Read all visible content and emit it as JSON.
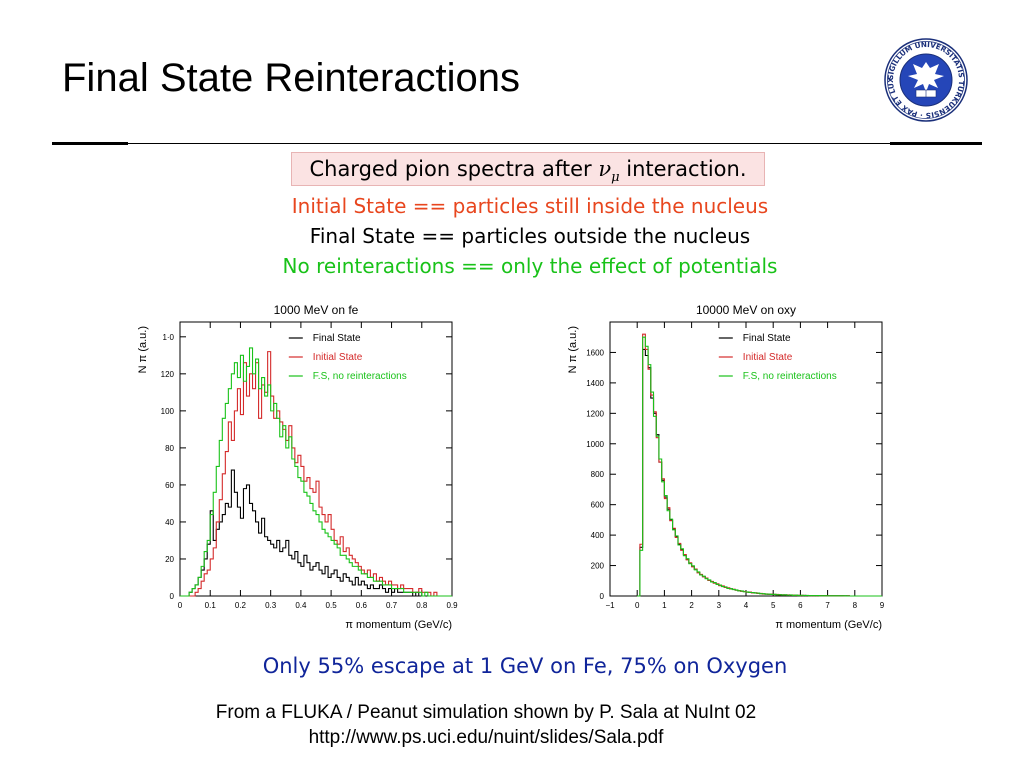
{
  "slide": {
    "title": "Final State Reinteractions",
    "logo_text": "SIGILLUM UNIVERSITATIS TURKUENSIS · PAX ET LUX"
  },
  "figure": {
    "title_prefix": "Charged pion spectra after ",
    "title_symbol": "ν",
    "title_subscript": "μ",
    "title_suffix": " interaction.",
    "definitions": [
      {
        "text": "Initial State == particles still inside the nucleus",
        "color": "#e8461e"
      },
      {
        "text": "Final State == particles outside the nucleus",
        "color": "#000000"
      },
      {
        "text": "No reinteractions == only the effect of potentials",
        "color": "#19c219"
      }
    ],
    "summary": "Only 55% escape at 1 GeV on Fe, 75% on Oxygen"
  },
  "credits": [
    "From a FLUKA / Peanut simulation shown by P. Sala at NuInt 02",
    "http://www.ps.uci.edu/nuint/slides/Sala.pdf"
  ],
  "chart_data": [
    {
      "type": "line",
      "title": "1000 MeV  on fe",
      "xlabel": "π momentum (GeV/c)",
      "ylabel": "N π (a.u.)",
      "xlim": [
        0,
        0.9
      ],
      "ylim": [
        0,
        148
      ],
      "xticks": [
        0,
        0.1,
        0.2,
        0.3,
        0.4,
        0.5,
        0.6,
        0.7,
        0.8,
        0.9
      ],
      "xtick_labels": [
        "0",
        "0.1",
        "0.2",
        "0.3",
        "0.4",
        "0.5",
        "0.6",
        "0.7",
        "0.8",
        "0.9"
      ],
      "yticks": [
        0,
        20,
        40,
        60,
        80,
        100,
        120,
        140
      ],
      "ytick_labels": [
        "0",
        "20",
        "40",
        "60",
        "80",
        "100",
        "120",
        "1·0"
      ],
      "legend_position": "top-right",
      "step": 0.01,
      "series": [
        {
          "name": "Final State",
          "color": "#000000",
          "values": [
            0,
            0,
            0,
            2,
            4,
            6,
            10,
            14,
            20,
            28,
            46,
            30,
            36,
            40,
            44,
            50,
            48,
            68,
            56,
            48,
            42,
            58,
            60,
            50,
            46,
            40,
            34,
            42,
            32,
            30,
            28,
            26,
            30,
            24,
            26,
            30,
            22,
            20,
            24,
            18,
            16,
            22,
            18,
            14,
            16,
            18,
            14,
            12,
            16,
            10,
            12,
            14,
            10,
            8,
            12,
            10,
            8,
            6,
            10,
            6,
            8,
            6,
            4,
            6,
            4,
            4,
            6,
            4,
            2,
            4,
            2,
            4,
            2,
            2,
            2,
            2,
            2,
            0,
            2,
            0,
            0,
            0,
            0,
            0,
            0,
            0,
            0,
            0,
            0,
            0
          ]
        },
        {
          "name": "Initial State",
          "color": "#d42a2a",
          "values": [
            0,
            0,
            0,
            0,
            0,
            2,
            4,
            8,
            12,
            14,
            20,
            26,
            40,
            52,
            66,
            78,
            94,
            84,
            100,
            112,
            98,
            126,
            108,
            120,
            112,
            126,
            96,
            114,
            110,
            132,
            108,
            96,
            100,
            94,
            90,
            84,
            92,
            80,
            72,
            76,
            70,
            62,
            64,
            58,
            56,
            62,
            48,
            44,
            40,
            44,
            36,
            30,
            28,
            32,
            24,
            26,
            22,
            20,
            18,
            16,
            14,
            12,
            14,
            10,
            12,
            8,
            10,
            8,
            6,
            8,
            6,
            6,
            4,
            6,
            4,
            4,
            4,
            2,
            2,
            4,
            2,
            2,
            2,
            0,
            2,
            0,
            0,
            0,
            0,
            0
          ]
        },
        {
          "name": "F.S, no reinteractions",
          "color": "#19c219",
          "values": [
            0,
            0,
            0,
            2,
            4,
            6,
            10,
            16,
            24,
            30,
            44,
            56,
            70,
            84,
            96,
            104,
            112,
            120,
            126,
            118,
            130,
            116,
            124,
            134,
            120,
            128,
            112,
            118,
            108,
            114,
            100,
            104,
            96,
            86,
            92,
            80,
            86,
            74,
            70,
            64,
            62,
            56,
            54,
            50,
            46,
            44,
            40,
            36,
            34,
            32,
            30,
            28,
            26,
            22,
            22,
            20,
            18,
            16,
            16,
            14,
            12,
            12,
            10,
            10,
            8,
            8,
            8,
            6,
            6,
            6,
            4,
            4,
            4,
            4,
            2,
            2,
            2,
            2,
            2,
            2,
            0,
            2,
            0,
            0,
            0,
            0,
            0,
            0,
            0,
            0
          ]
        }
      ]
    },
    {
      "type": "line",
      "title": "10000 MeV  on oxy",
      "xlabel": "π momentum (GeV/c)",
      "ylabel": "N π (a.u.)",
      "xlim": [
        -1,
        9
      ],
      "ylim": [
        0,
        1800
      ],
      "xticks": [
        -1,
        0,
        1,
        2,
        3,
        4,
        5,
        6,
        7,
        8,
        9
      ],
      "xtick_labels": [
        "−1",
        "0",
        "1",
        "2",
        "3",
        "4",
        "5",
        "6",
        "7",
        "8",
        "9"
      ],
      "yticks": [
        0,
        200,
        400,
        600,
        800,
        1000,
        1200,
        1400,
        1600
      ],
      "ytick_labels": [
        "0",
        "200",
        "400",
        "600",
        "800",
        "1000",
        "1200",
        "1400",
        "1600"
      ],
      "legend_position": "top-right",
      "step": 0.1,
      "series": [
        {
          "name": "Final State",
          "color": "#000000",
          "values": [
            0,
            320,
            1620,
            1580,
            1500,
            1300,
            1200,
            1060,
            880,
            760,
            650,
            570,
            500,
            440,
            390,
            340,
            305,
            270,
            240,
            215,
            195,
            175,
            155,
            140,
            128,
            116,
            104,
            94,
            86,
            78,
            70,
            64,
            58,
            52,
            47,
            43,
            39,
            35,
            32,
            29,
            26,
            24,
            22,
            20,
            18,
            16,
            14,
            13,
            12,
            11,
            10,
            9,
            8,
            7,
            7,
            6,
            6,
            5,
            5,
            4,
            4,
            4,
            3,
            3,
            3,
            2,
            2,
            2,
            2,
            2,
            1,
            1,
            1,
            1,
            1,
            1,
            1,
            1,
            0,
            0,
            0,
            0,
            0,
            0,
            0,
            0,
            0,
            0,
            0,
            0
          ]
        },
        {
          "name": "Initial State",
          "color": "#d42a2a",
          "values": [
            0,
            340,
            1720,
            1620,
            1490,
            1320,
            1210,
            1040,
            880,
            770,
            640,
            580,
            495,
            445,
            385,
            345,
            300,
            272,
            238,
            218,
            192,
            177,
            152,
            142,
            126,
            118,
            102,
            96,
            84,
            80,
            68,
            66,
            56,
            54,
            46,
            44,
            38,
            36,
            31,
            30,
            25,
            25,
            21,
            21,
            17,
            17,
            13,
            14,
            11,
            12,
            9,
            10,
            7,
            8,
            6,
            7,
            5,
            6,
            4,
            5,
            3,
            4,
            3,
            3,
            2,
            3,
            2,
            2,
            1,
            2,
            1,
            1,
            1,
            1,
            1,
            1,
            0,
            1,
            0,
            0,
            0,
            0,
            0,
            0,
            0,
            0,
            0,
            0,
            0,
            0
          ]
        },
        {
          "name": "F.S, no reinteractions",
          "color": "#19c219",
          "values": [
            0,
            300,
            1700,
            1640,
            1520,
            1340,
            1180,
            1050,
            900,
            750,
            660,
            560,
            505,
            435,
            395,
            335,
            310,
            265,
            245,
            212,
            198,
            172,
            158,
            138,
            130,
            114,
            106,
            92,
            88,
            76,
            72,
            62,
            60,
            50,
            48,
            42,
            40,
            34,
            33,
            28,
            27,
            23,
            23,
            19,
            19,
            15,
            15,
            12,
            13,
            10,
            11,
            8,
            9,
            6,
            8,
            5,
            7,
            4,
            6,
            3,
            5,
            3,
            4,
            2,
            3,
            2,
            3,
            1,
            2,
            1,
            1,
            1,
            1,
            1,
            1,
            1,
            1,
            0,
            0,
            0,
            0,
            0,
            0,
            0,
            0,
            0,
            0,
            0,
            0,
            0
          ]
        }
      ]
    }
  ]
}
